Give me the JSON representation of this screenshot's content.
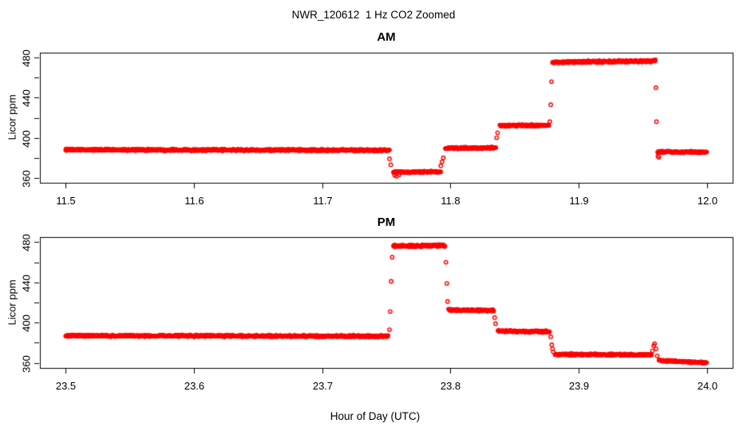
{
  "figure": {
    "title": "NWR_120612  1 Hz CO2 Zoomed",
    "xlabel": "Hour of Day (UTC)",
    "background": "#FFFFFF",
    "axis_color": "#000000",
    "point_color": "#FF0000"
  },
  "chart_data": [
    {
      "type": "scatter",
      "title": "AM",
      "ylabel": "Licor ppm",
      "marker": "open-circle",
      "color": "#FF0000",
      "sample_rate_hz": 1,
      "xlim": [
        11.48,
        12.02
      ],
      "ylim": [
        355,
        485
      ],
      "grid": false,
      "legend": "none",
      "xticks": [
        {
          "v": 11.5,
          "label": "11.5"
        },
        {
          "v": 11.6,
          "label": "11.6"
        },
        {
          "v": 11.7,
          "label": "11.7"
        },
        {
          "v": 11.8,
          "label": "11.8"
        },
        {
          "v": 11.9,
          "label": "11.9"
        },
        {
          "v": 12.0,
          "label": "12.0"
        }
      ],
      "yticks": [
        {
          "v": 360,
          "label": "360"
        },
        {
          "v": 380,
          "label": ""
        },
        {
          "v": 400,
          "label": "400"
        },
        {
          "v": 420,
          "label": ""
        },
        {
          "v": 440,
          "label": "440"
        },
        {
          "v": 460,
          "label": ""
        },
        {
          "v": 480,
          "label": "480"
        }
      ],
      "segments": [
        [
          11.5,
          11.7525,
          388.0,
          387.5,
          1.1
        ],
        [
          11.7555,
          11.7925,
          365.5,
          366.0,
          1.1
        ],
        [
          11.796,
          11.8355,
          389.5,
          390.0,
          1.1
        ],
        [
          11.8385,
          11.877,
          412.0,
          412.5,
          1.1
        ],
        [
          11.8795,
          11.9595,
          475.5,
          476.5,
          1.4
        ],
        [
          11.9615,
          12.0,
          386.0,
          385.5,
          1.1
        ]
      ],
      "extra_points": [
        [
          11.7525,
          379.0
        ],
        [
          11.7535,
          373.0
        ],
        [
          11.7565,
          362.5
        ],
        [
          11.758,
          361.5
        ],
        [
          11.76,
          363.0
        ],
        [
          11.7925,
          372.0
        ],
        [
          11.7935,
          376.0
        ],
        [
          11.7945,
          380.0
        ],
        [
          11.836,
          400.0
        ],
        [
          11.8368,
          405.0
        ],
        [
          11.8775,
          416.0
        ],
        [
          11.8782,
          433.0
        ],
        [
          11.8788,
          456.0
        ],
        [
          11.9598,
          478.0
        ],
        [
          11.9602,
          450.0
        ],
        [
          11.9606,
          416.0
        ],
        [
          11.9618,
          381.5
        ],
        [
          11.9625,
          380.5
        ]
      ]
    },
    {
      "type": "scatter",
      "title": "PM",
      "ylabel": "Licor ppm",
      "marker": "open-circle",
      "color": "#FF0000",
      "sample_rate_hz": 1,
      "xlim": [
        23.48,
        24.02
      ],
      "ylim": [
        355,
        485
      ],
      "grid": false,
      "legend": "none",
      "xticks": [
        {
          "v": 23.5,
          "label": "23.5"
        },
        {
          "v": 23.6,
          "label": "23.6"
        },
        {
          "v": 23.7,
          "label": "23.7"
        },
        {
          "v": 23.8,
          "label": "23.8"
        },
        {
          "v": 23.9,
          "label": "23.9"
        },
        {
          "v": 24.0,
          "label": "24.0"
        }
      ],
      "yticks": [
        {
          "v": 360,
          "label": "360"
        },
        {
          "v": 380,
          "label": ""
        },
        {
          "v": 400,
          "label": "400"
        },
        {
          "v": 420,
          "label": ""
        },
        {
          "v": 440,
          "label": "440"
        },
        {
          "v": 460,
          "label": ""
        },
        {
          "v": 480,
          "label": "480"
        }
      ],
      "segments": [
        [
          23.5,
          23.7515,
          387.0,
          386.5,
          1.1
        ],
        [
          23.7555,
          23.796,
          476.0,
          476.5,
          1.4
        ],
        [
          23.7985,
          23.834,
          412.5,
          412.0,
          1.1
        ],
        [
          23.837,
          23.8775,
          391.5,
          391.0,
          1.1
        ],
        [
          23.8815,
          23.957,
          368.5,
          368.0,
          1.1
        ],
        [
          23.9625,
          24.0,
          362.5,
          360.0,
          1.0
        ]
      ],
      "extra_points": [
        [
          23.7525,
          393.0
        ],
        [
          23.7531,
          411.0
        ],
        [
          23.7538,
          441.0
        ],
        [
          23.7546,
          465.0
        ],
        [
          23.7965,
          460.0
        ],
        [
          23.7972,
          439.0
        ],
        [
          23.7978,
          421.0
        ],
        [
          23.8345,
          405.0
        ],
        [
          23.8352,
          399.0
        ],
        [
          23.8782,
          386.0
        ],
        [
          23.879,
          378.0
        ],
        [
          23.8796,
          374.0
        ],
        [
          23.8802,
          371.0
        ],
        [
          23.9575,
          372.0
        ],
        [
          23.9585,
          377.0
        ],
        [
          23.9592,
          379.0
        ],
        [
          23.9603,
          374.0
        ],
        [
          23.9612,
          367.0
        ]
      ]
    }
  ]
}
